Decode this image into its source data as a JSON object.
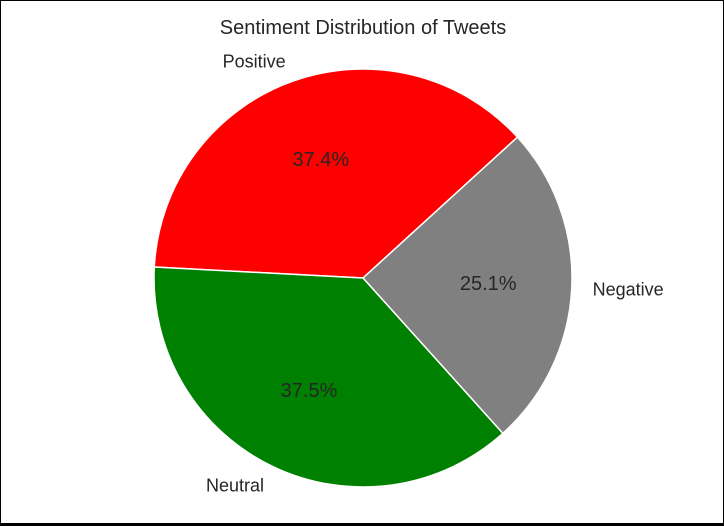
{
  "chart_data": {
    "type": "pie",
    "title": "Sentiment Distribution of Tweets",
    "slices": [
      {
        "label": "Positive",
        "value": 37.4,
        "pct_label": "37.4%",
        "color": "#ff0000"
      },
      {
        "label": "Negative",
        "value": 25.1,
        "pct_label": "25.1%",
        "color": "#808080"
      },
      {
        "label": "Neutral",
        "value": 37.5,
        "pct_label": "37.5%",
        "color": "#008000"
      }
    ],
    "start_angle_deg": -87,
    "edge_color": "#ffffff"
  }
}
